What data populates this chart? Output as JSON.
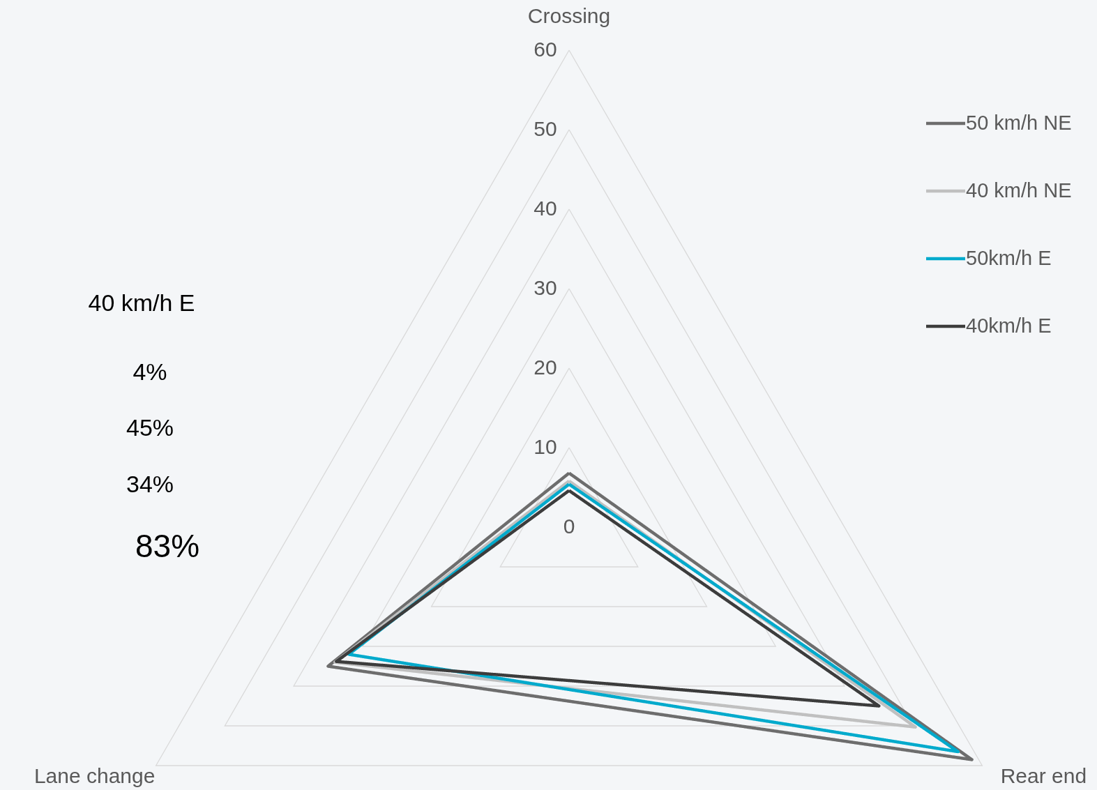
{
  "chart_data": {
    "type": "radar",
    "categories": [
      "Crossing",
      "Rear end",
      "Lane change"
    ],
    "series": [
      {
        "name": "50 km/h NE",
        "color": "#6d6d6d",
        "values": [
          6.8,
          58.5,
          35
        ]
      },
      {
        "name": "40 km/h NE",
        "color": "#c0c0c0",
        "values": [
          5.8,
          50.3,
          34
        ]
      },
      {
        "name": "50km/h E",
        "color": "#00aacc",
        "values": [
          5.4,
          56.5,
          32
        ]
      },
      {
        "name": "40km/h E",
        "color": "#3c3c3c",
        "values": [
          4.6,
          45,
          33.8
        ]
      }
    ],
    "ylim": [
      0,
      60
    ],
    "yticks": [
      0,
      10,
      20,
      30,
      40,
      50,
      60
    ],
    "grid": true,
    "legend": "right",
    "marker": "none",
    "line_style": "solid",
    "annotations": [
      "40 km/h E",
      "4%",
      "45%",
      "34%",
      "83%"
    ]
  }
}
